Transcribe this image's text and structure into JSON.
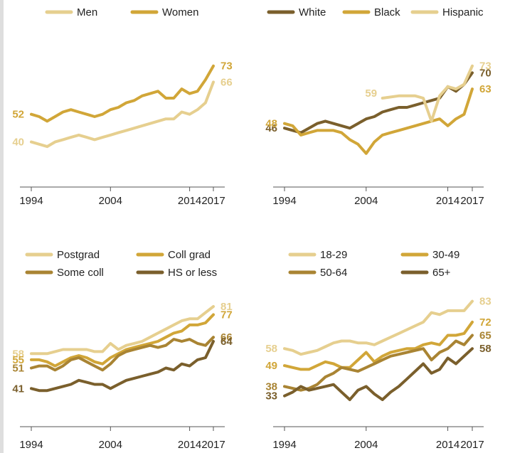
{
  "colors": {
    "light": "#e6cf8f",
    "gold": "#d1a638",
    "mid": "#a98433",
    "dark": "#7a5f2c",
    "axis": "#555555"
  },
  "chart_data": [
    {
      "type": "line",
      "title": "",
      "xlim": [
        1994,
        2017
      ],
      "ylim": [
        30,
        80
      ],
      "xticks": [
        "1994",
        "2004",
        "2014",
        "2017"
      ],
      "series": [
        {
          "name": "Men",
          "color": "light",
          "x": [
            1994,
            1995,
            1996,
            1997,
            1998,
            1999,
            2000,
            2001,
            2002,
            2003,
            2004,
            2005,
            2006,
            2007,
            2008,
            2009,
            2010,
            2011,
            2012,
            2013,
            2014,
            2015,
            2016,
            2017
          ],
          "y": [
            40,
            39,
            38,
            40,
            41,
            42,
            43,
            42,
            41,
            42,
            43,
            44,
            45,
            46,
            47,
            48,
            49,
            50,
            50,
            53,
            52,
            54,
            57,
            66
          ],
          "start_label": "40",
          "end_label": "66"
        },
        {
          "name": "Women",
          "color": "gold",
          "x": [
            1994,
            1995,
            1996,
            1997,
            1998,
            1999,
            2000,
            2001,
            2002,
            2003,
            2004,
            2005,
            2006,
            2007,
            2008,
            2009,
            2010,
            2011,
            2012,
            2013,
            2014,
            2015,
            2016,
            2017
          ],
          "y": [
            52,
            51,
            49,
            51,
            53,
            54,
            53,
            52,
            51,
            52,
            54,
            55,
            57,
            58,
            60,
            61,
            62,
            59,
            59,
            63,
            61,
            62,
            67,
            73
          ],
          "start_label": "52",
          "end_label": "73"
        }
      ]
    },
    {
      "type": "line",
      "title": "",
      "xlim": [
        1994,
        2017
      ],
      "ylim": [
        30,
        80
      ],
      "xticks": [
        "1994",
        "2004",
        "2014",
        "2017"
      ],
      "series": [
        {
          "name": "White",
          "color": "dark",
          "x": [
            1994,
            1995,
            1996,
            1997,
            1998,
            1999,
            2000,
            2001,
            2002,
            2003,
            2004,
            2005,
            2006,
            2007,
            2008,
            2009,
            2010,
            2011,
            2012,
            2013,
            2014,
            2015,
            2016,
            2017
          ],
          "y": [
            46,
            45,
            44,
            46,
            48,
            49,
            48,
            47,
            46,
            48,
            50,
            51,
            53,
            54,
            55,
            55,
            56,
            57,
            58,
            59,
            64,
            62,
            65,
            70
          ],
          "start_label": "46",
          "end_label": "70"
        },
        {
          "name": "Black",
          "color": "gold",
          "x": [
            1994,
            1995,
            1996,
            1997,
            1998,
            1999,
            2000,
            2001,
            2002,
            2003,
            2004,
            2005,
            2006,
            2007,
            2008,
            2009,
            2010,
            2011,
            2012,
            2013,
            2014,
            2015,
            2016,
            2017
          ],
          "y": [
            48,
            47,
            43,
            44,
            45,
            45,
            45,
            44,
            41,
            39,
            35,
            40,
            43,
            44,
            45,
            46,
            47,
            48,
            49,
            50,
            47,
            50,
            52,
            63
          ],
          "start_label": "48",
          "end_label": "63"
        },
        {
          "name": "Hispanic",
          "color": "light",
          "x": [
            2006,
            2008,
            2010,
            2011,
            2012,
            2013,
            2014,
            2015,
            2016,
            2017
          ],
          "y": [
            59,
            60,
            60,
            59,
            49,
            60,
            64,
            63,
            65,
            73
          ],
          "start_label": "59",
          "end_label": "73"
        }
      ]
    },
    {
      "type": "line",
      "title": "",
      "xlim": [
        1994,
        2017
      ],
      "ylim": [
        30,
        90
      ],
      "xticks": [
        "1994",
        "2004",
        "2014",
        "2017"
      ],
      "series": [
        {
          "name": "Postgrad",
          "color": "light",
          "x": [
            1994,
            1995,
            1996,
            1997,
            1998,
            1999,
            2000,
            2001,
            2002,
            2003,
            2004,
            2005,
            2006,
            2007,
            2008,
            2009,
            2010,
            2011,
            2012,
            2013,
            2014,
            2015,
            2016,
            2017
          ],
          "y": [
            58,
            58,
            58,
            59,
            60,
            60,
            60,
            60,
            59,
            59,
            63,
            60,
            62,
            63,
            64,
            66,
            68,
            70,
            72,
            74,
            75,
            75,
            78,
            81
          ],
          "start_label": "58",
          "end_label": "81"
        },
        {
          "name": "Coll grad",
          "color": "gold",
          "x": [
            1994,
            1995,
            1996,
            1997,
            1998,
            1999,
            2000,
            2001,
            2002,
            2003,
            2004,
            2005,
            2006,
            2007,
            2008,
            2009,
            2010,
            2011,
            2012,
            2013,
            2014,
            2015,
            2016,
            2017
          ],
          "y": [
            55,
            55,
            54,
            52,
            54,
            56,
            57,
            56,
            54,
            53,
            56,
            58,
            60,
            61,
            62,
            63,
            64,
            66,
            68,
            69,
            72,
            72,
            73,
            77
          ],
          "start_label": "55",
          "end_label": "77"
        },
        {
          "name": "Some coll",
          "color": "mid",
          "x": [
            1994,
            1995,
            1996,
            1997,
            1998,
            1999,
            2000,
            2001,
            2002,
            2003,
            2004,
            2005,
            2006,
            2007,
            2008,
            2009,
            2010,
            2011,
            2012,
            2013,
            2014,
            2015,
            2016,
            2017
          ],
          "y": [
            51,
            52,
            52,
            50,
            52,
            55,
            56,
            54,
            52,
            50,
            53,
            57,
            59,
            60,
            61,
            62,
            61,
            62,
            65,
            64,
            65,
            63,
            62,
            66
          ],
          "start_label": "51",
          "end_label": "66"
        },
        {
          "name": "HS or less",
          "color": "dark",
          "x": [
            1994,
            1995,
            1996,
            1997,
            1998,
            1999,
            2000,
            2001,
            2002,
            2003,
            2004,
            2005,
            2006,
            2007,
            2008,
            2009,
            2010,
            2011,
            2012,
            2013,
            2014,
            2015,
            2016,
            2017
          ],
          "y": [
            41,
            40,
            40,
            41,
            42,
            43,
            45,
            44,
            43,
            43,
            41,
            43,
            45,
            46,
            47,
            48,
            49,
            51,
            50,
            53,
            52,
            55,
            56,
            64
          ],
          "start_label": "41",
          "end_label": "64"
        }
      ]
    },
    {
      "type": "line",
      "title": "",
      "xlim": [
        1994,
        2017
      ],
      "ylim": [
        25,
        90
      ],
      "xticks": [
        "1994",
        "2004",
        "2014",
        "2017"
      ],
      "series": [
        {
          "name": "18-29",
          "color": "light",
          "x": [
            1994,
            1995,
            1996,
            1997,
            1998,
            1999,
            2000,
            2001,
            2002,
            2003,
            2004,
            2005,
            2006,
            2007,
            2008,
            2009,
            2010,
            2011,
            2012,
            2013,
            2014,
            2015,
            2016,
            2017
          ],
          "y": [
            58,
            57,
            55,
            56,
            57,
            59,
            61,
            62,
            62,
            61,
            61,
            60,
            62,
            64,
            66,
            68,
            70,
            72,
            77,
            76,
            78,
            78,
            78,
            83
          ],
          "start_label": "58",
          "end_label": "83"
        },
        {
          "name": "30-49",
          "color": "gold",
          "x": [
            1994,
            1995,
            1996,
            1997,
            1998,
            1999,
            2000,
            2001,
            2002,
            2003,
            2004,
            2005,
            2006,
            2007,
            2008,
            2009,
            2010,
            2011,
            2012,
            2013,
            2014,
            2015,
            2016,
            2017
          ],
          "y": [
            49,
            48,
            47,
            47,
            49,
            51,
            50,
            48,
            48,
            52,
            56,
            51,
            54,
            56,
            57,
            58,
            58,
            60,
            61,
            60,
            65,
            65,
            66,
            72
          ],
          "start_label": "49",
          "end_label": "72"
        },
        {
          "name": "50-64",
          "color": "mid",
          "x": [
            1994,
            1995,
            1996,
            1997,
            1998,
            1999,
            2000,
            2001,
            2002,
            2003,
            2004,
            2005,
            2006,
            2007,
            2008,
            2009,
            2010,
            2011,
            2012,
            2013,
            2014,
            2015,
            2016,
            2017
          ],
          "y": [
            38,
            37,
            36,
            37,
            39,
            43,
            45,
            48,
            47,
            46,
            48,
            50,
            52,
            54,
            55,
            56,
            57,
            58,
            52,
            56,
            58,
            62,
            60,
            65
          ],
          "start_label": "38",
          "end_label": "65"
        },
        {
          "name": "65+",
          "color": "dark",
          "x": [
            1994,
            1995,
            1996,
            1997,
            1998,
            1999,
            2000,
            2001,
            2002,
            2003,
            2004,
            2005,
            2006,
            2007,
            2008,
            2009,
            2010,
            2011,
            2012,
            2013,
            2014,
            2015,
            2016,
            2017
          ],
          "y": [
            33,
            35,
            38,
            36,
            37,
            38,
            39,
            35,
            31,
            36,
            38,
            34,
            31,
            35,
            38,
            42,
            46,
            50,
            45,
            47,
            53,
            50,
            54,
            58
          ],
          "start_label": "33",
          "end_label": "58"
        }
      ]
    }
  ]
}
